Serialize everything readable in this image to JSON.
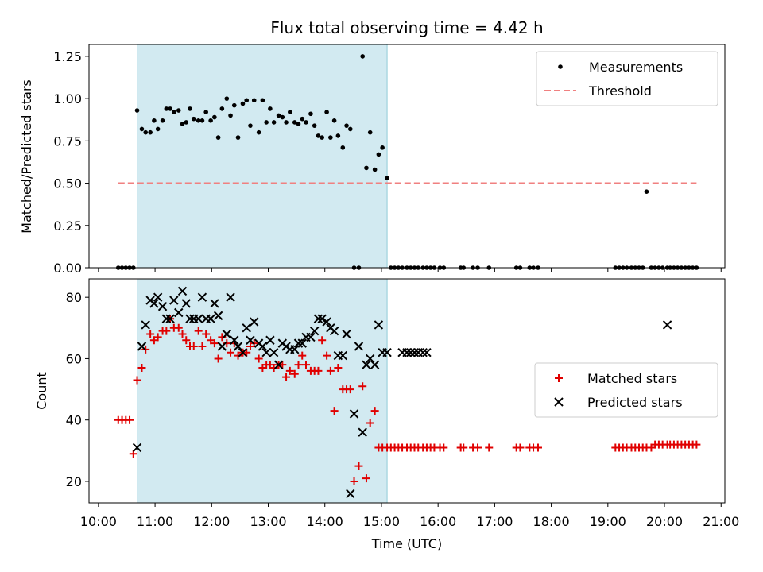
{
  "colors": {
    "measurement": "#000000",
    "threshold": "#f08080",
    "matched": "#e00000",
    "predicted": "#000000",
    "shade": "#add8e6"
  },
  "chart_data": [
    {
      "type": "scatter",
      "title": "Flux total observing time = 4.42 h",
      "xlabel": "",
      "ylabel": "Matched/Predicted stars",
      "ylim": [
        0,
        1.32
      ],
      "yticks": [
        "0.00",
        "0.25",
        "0.50",
        "0.75",
        "1.00",
        "1.25"
      ],
      "ytick_values": [
        0,
        0.25,
        0.5,
        0.75,
        1.0,
        1.25
      ],
      "legend_position": "top-right",
      "shaded_interval": [
        "10:41",
        "15:06"
      ],
      "threshold": {
        "name": "Threshold",
        "y": 0.5,
        "x_range": [
          "10:21",
          "20:34"
        ]
      },
      "series": [
        {
          "name": "Measurements",
          "x": [
            "10:21",
            "10:25",
            "10:29",
            "10:33",
            "10:37",
            "10:41",
            "10:46",
            "10:50",
            "10:55",
            "10:59",
            "11:03",
            "11:08",
            "11:12",
            "11:16",
            "11:20",
            "11:25",
            "11:29",
            "11:33",
            "11:37",
            "11:41",
            "11:46",
            "11:50",
            "11:54",
            "11:59",
            "12:03",
            "12:07",
            "12:11",
            "12:16",
            "12:20",
            "12:24",
            "12:28",
            "12:33",
            "12:37",
            "12:41",
            "12:45",
            "12:50",
            "12:54",
            "12:58",
            "13:02",
            "13:06",
            "13:11",
            "13:15",
            "13:19",
            "13:23",
            "13:28",
            "13:32",
            "13:36",
            "13:40",
            "13:45",
            "13:49",
            "13:53",
            "13:57",
            "14:02",
            "14:06",
            "14:10",
            "14:14",
            "14:19",
            "14:23",
            "14:27",
            "14:31",
            "14:36",
            "14:40",
            "14:44",
            "14:48",
            "14:53",
            "14:57",
            "15:01",
            "15:06",
            "15:10",
            "15:14",
            "15:18",
            "15:22",
            "15:27",
            "15:31",
            "15:35",
            "15:39",
            "15:44",
            "15:48",
            "15:52",
            "15:56",
            "16:02",
            "16:06",
            "16:24",
            "16:27",
            "16:37",
            "16:42",
            "16:54",
            "17:23",
            "17:27",
            "17:37",
            "17:41",
            "17:46",
            "19:08",
            "19:12",
            "19:16",
            "19:20",
            "19:25",
            "19:29",
            "19:33",
            "19:37",
            "19:41",
            "19:46",
            "19:50",
            "19:54",
            "19:58",
            "20:03",
            "20:06",
            "20:10",
            "20:14",
            "20:18",
            "20:22",
            "20:26",
            "20:30",
            "20:34"
          ],
          "y": [
            0,
            0,
            0,
            0,
            0,
            0.93,
            0.82,
            0.8,
            0.8,
            0.87,
            0.82,
            0.87,
            0.94,
            0.94,
            0.92,
            0.93,
            0.85,
            0.86,
            0.94,
            0.88,
            0.87,
            0.87,
            0.92,
            0.87,
            0.89,
            0.77,
            0.94,
            1.0,
            0.9,
            0.96,
            0.77,
            0.97,
            0.99,
            0.84,
            0.99,
            0.8,
            0.99,
            0.86,
            0.94,
            0.86,
            0.9,
            0.89,
            0.86,
            0.92,
            0.86,
            0.85,
            0.88,
            0.86,
            0.91,
            0.84,
            0.78,
            0.77,
            0.92,
            0.77,
            0.87,
            0.78,
            0.71,
            0.84,
            0.82,
            0,
            0,
            1.25,
            0.59,
            0.8,
            0.58,
            0.67,
            0.71,
            0.53,
            0,
            0,
            0,
            0,
            0,
            0,
            0,
            0,
            0,
            0,
            0,
            0,
            0,
            0,
            0,
            0,
            0,
            0,
            0,
            0,
            0,
            0,
            0,
            0,
            0,
            0,
            0,
            0,
            0,
            0,
            0,
            0,
            0.45,
            0,
            0,
            0,
            0,
            0,
            0,
            0,
            0,
            0,
            0,
            0,
            0,
            0
          ]
        }
      ]
    },
    {
      "type": "scatter",
      "title": "",
      "xlabel": "Time (UTC)",
      "ylabel": "Count",
      "ylim": [
        13,
        86
      ],
      "yticks": [
        "20",
        "40",
        "60",
        "80"
      ],
      "ytick_values": [
        20,
        40,
        60,
        80
      ],
      "xticks": [
        "10:00",
        "11:00",
        "12:00",
        "13:00",
        "14:00",
        "15:00",
        "16:00",
        "17:00",
        "18:00",
        "19:00",
        "20:00",
        "21:00"
      ],
      "xlim": [
        "9:50",
        "21:04"
      ],
      "legend_position": "center-right",
      "shaded_interval": [
        "10:41",
        "15:06"
      ],
      "series": [
        {
          "name": "Matched stars",
          "marker": "plus",
          "x": [
            "10:21",
            "10:25",
            "10:29",
            "10:33",
            "10:37",
            "10:41",
            "10:46",
            "10:50",
            "10:55",
            "10:59",
            "11:03",
            "11:08",
            "11:12",
            "11:16",
            "11:20",
            "11:25",
            "11:29",
            "11:33",
            "11:37",
            "11:41",
            "11:46",
            "11:50",
            "11:54",
            "11:59",
            "12:03",
            "12:07",
            "12:11",
            "12:16",
            "12:20",
            "12:24",
            "12:28",
            "12:33",
            "12:37",
            "12:41",
            "12:45",
            "12:50",
            "12:54",
            "12:58",
            "13:02",
            "13:06",
            "13:11",
            "13:15",
            "13:19",
            "13:23",
            "13:28",
            "13:32",
            "13:36",
            "13:40",
            "13:45",
            "13:49",
            "13:53",
            "13:57",
            "14:02",
            "14:06",
            "14:10",
            "14:14",
            "14:19",
            "14:23",
            "14:27",
            "14:31",
            "14:36",
            "14:40",
            "14:44",
            "14:48",
            "14:53",
            "14:57",
            "15:01",
            "15:06",
            "15:10",
            "15:14",
            "15:18",
            "15:22",
            "15:27",
            "15:31",
            "15:35",
            "15:39",
            "15:44",
            "15:48",
            "15:52",
            "15:56",
            "16:02",
            "16:06",
            "16:24",
            "16:27",
            "16:37",
            "16:42",
            "16:54",
            "17:23",
            "17:27",
            "17:37",
            "17:41",
            "17:46",
            "19:08",
            "19:12",
            "19:16",
            "19:20",
            "19:25",
            "19:29",
            "19:33",
            "19:37",
            "19:41",
            "19:46",
            "19:50",
            "19:54",
            "19:58",
            "20:03",
            "20:06",
            "20:10",
            "20:14",
            "20:18",
            "20:22",
            "20:26",
            "20:30",
            "20:34"
          ],
          "y": [
            40,
            40,
            40,
            40,
            29,
            53,
            57,
            63,
            68,
            66,
            67,
            69,
            69,
            73,
            70,
            70,
            68,
            66,
            64,
            64,
            69,
            64,
            68,
            66,
            65,
            60,
            67,
            65,
            62,
            65,
            61,
            62,
            62,
            64,
            65,
            60,
            57,
            58,
            58,
            57,
            58,
            58,
            54,
            56,
            55,
            58,
            61,
            58,
            56,
            56,
            56,
            66,
            61,
            56,
            43,
            57,
            50,
            50,
            50,
            20,
            25,
            51,
            21,
            39,
            43,
            31,
            31,
            31,
            31,
            31,
            31,
            31,
            31,
            31,
            31,
            31,
            31,
            31,
            31,
            31,
            31,
            31,
            31,
            31,
            31,
            31,
            31,
            31,
            31,
            31,
            31,
            31,
            31,
            31,
            31,
            31,
            31,
            31,
            31,
            31,
            31,
            31,
            32,
            32,
            32,
            32,
            32,
            32,
            32,
            32,
            32,
            32,
            32,
            32
          ]
        },
        {
          "name": "Predicted stars",
          "marker": "x",
          "x": [
            "10:41",
            "10:46",
            "10:50",
            "10:55",
            "10:59",
            "11:03",
            "11:08",
            "11:12",
            "11:16",
            "11:20",
            "11:25",
            "11:29",
            "11:33",
            "11:37",
            "11:41",
            "11:46",
            "11:50",
            "11:54",
            "11:59",
            "12:03",
            "12:07",
            "12:11",
            "12:16",
            "12:20",
            "12:24",
            "12:28",
            "12:33",
            "12:37",
            "12:41",
            "12:45",
            "12:50",
            "12:54",
            "12:58",
            "13:02",
            "13:06",
            "13:11",
            "13:15",
            "13:19",
            "13:23",
            "13:28",
            "13:32",
            "13:36",
            "13:40",
            "13:45",
            "13:49",
            "13:53",
            "13:57",
            "14:02",
            "14:06",
            "14:10",
            "14:14",
            "14:19",
            "14:23",
            "14:27",
            "14:31",
            "14:36",
            "14:40",
            "14:44",
            "14:48",
            "14:53",
            "14:57",
            "15:01",
            "15:06",
            "15:22",
            "15:27",
            "15:31",
            "15:35",
            "15:39",
            "15:44",
            "15:48",
            "20:03"
          ],
          "y": [
            31,
            64,
            71,
            79,
            78,
            80,
            77,
            73,
            73,
            79,
            75,
            82,
            78,
            73,
            73,
            73,
            80,
            73,
            73,
            78,
            74,
            64,
            68,
            80,
            66,
            64,
            62,
            70,
            66,
            72,
            65,
            64,
            62,
            66,
            62,
            58,
            65,
            64,
            63,
            63,
            65,
            65,
            67,
            67,
            69,
            73,
            73,
            72,
            70,
            69,
            61,
            61,
            68,
            16,
            42,
            64,
            36,
            58,
            60,
            58,
            71,
            62,
            62,
            62,
            62,
            62,
            62,
            62,
            62,
            62,
            71
          ]
        }
      ]
    }
  ]
}
